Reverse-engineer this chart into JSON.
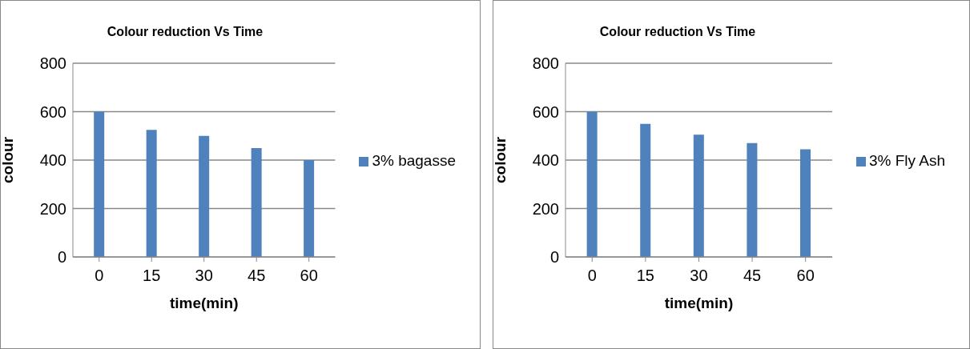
{
  "chart_data": [
    {
      "type": "bar",
      "title": "Colour reduction Vs Time",
      "xlabel": "time(min)",
      "ylabel": "colour",
      "categories": [
        "0",
        "15",
        "30",
        "45",
        "60"
      ],
      "series": [
        {
          "name": "3% bagasse",
          "color": "#4f81bd",
          "values": [
            600,
            525,
            500,
            450,
            400
          ]
        }
      ],
      "ylim": [
        0,
        800
      ],
      "yticks": [
        0,
        200,
        400,
        600,
        800
      ],
      "grid": "y",
      "legend": "right"
    },
    {
      "type": "bar",
      "title": "Colour reduction Vs Time",
      "xlabel": "time(min)",
      "ylabel": "colour",
      "categories": [
        "0",
        "15",
        "30",
        "45",
        "60"
      ],
      "series": [
        {
          "name": "3% Fly Ash",
          "color": "#4f81bd",
          "values": [
            600,
            550,
            505,
            470,
            445
          ]
        }
      ],
      "ylim": [
        0,
        800
      ],
      "yticks": [
        0,
        200,
        400,
        600,
        800
      ],
      "grid": "y",
      "legend": "right"
    }
  ]
}
